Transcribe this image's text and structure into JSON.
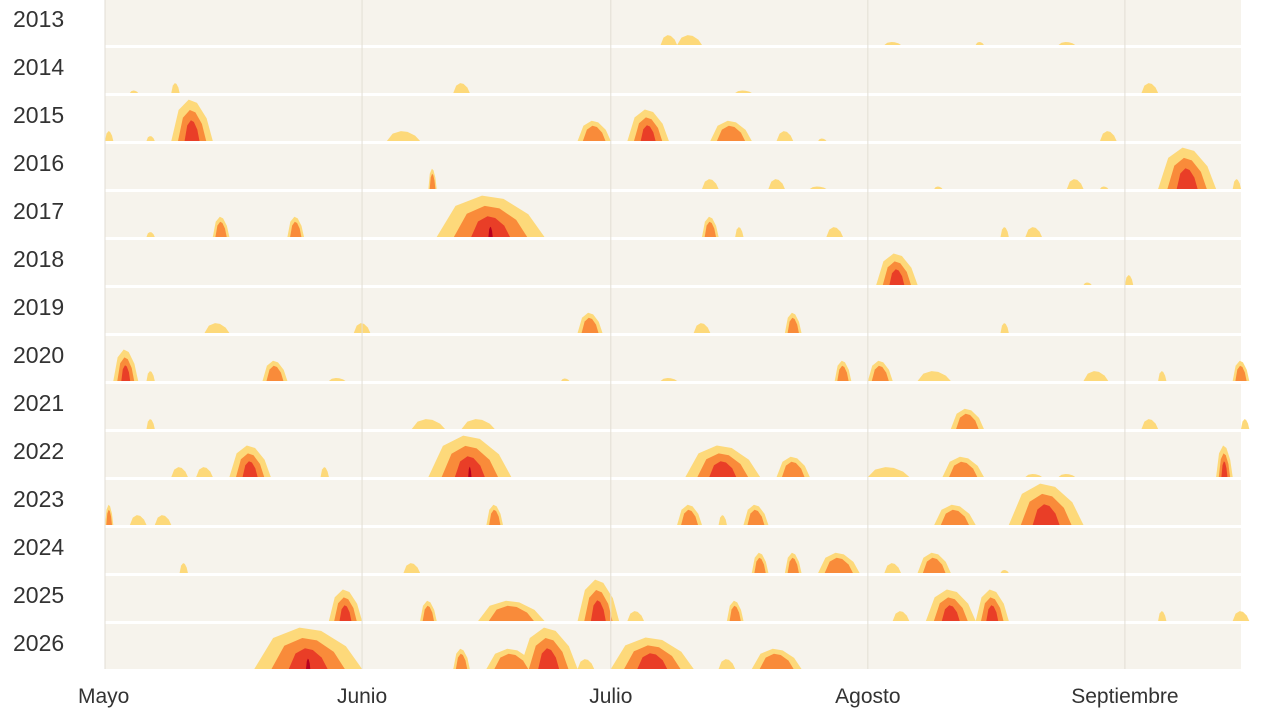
{
  "chart_data": {
    "type": "area",
    "x_axis": {
      "labels": [
        {
          "label": "Mayo",
          "day": 1
        },
        {
          "label": "Junio",
          "day": 32
        },
        {
          "label": "Julio",
          "day": 62
        },
        {
          "label": "Agosto",
          "day": 93
        },
        {
          "label": "Septiembre",
          "day": 124
        }
      ],
      "start_day": 1,
      "end_day": 138
    },
    "levels": [
      {
        "level": 1,
        "color": "#fdd97a"
      },
      {
        "level": 2,
        "color": "#f98b3a"
      },
      {
        "level": 3,
        "color": "#e93e27"
      },
      {
        "level": 4,
        "color": "#b8001f"
      }
    ],
    "rows": [
      {
        "year": "2013",
        "episodes": [
          [
            68,
            70,
            1
          ],
          [
            70,
            73,
            1
          ],
          [
            95,
            97,
            0.3
          ],
          [
            106,
            107,
            0.3
          ],
          [
            116,
            118,
            0.3
          ]
        ]
      },
      {
        "year": "2014",
        "episodes": [
          [
            4,
            5,
            0.1
          ],
          [
            9,
            10,
            1
          ],
          [
            43,
            45,
            1
          ],
          [
            126,
            128,
            1
          ],
          [
            77,
            79,
            0.2
          ]
        ]
      },
      {
        "year": "2015",
        "episodes": [
          [
            1,
            2,
            1
          ],
          [
            6,
            7,
            0.5
          ],
          [
            9,
            14,
            4
          ],
          [
            35,
            39,
            1
          ],
          [
            58,
            62,
            2
          ],
          [
            64,
            69,
            3
          ],
          [
            74,
            79,
            2
          ],
          [
            82,
            84,
            1
          ],
          [
            87,
            88,
            0.2
          ],
          [
            121,
            123,
            1
          ]
        ]
      },
      {
        "year": "2016",
        "episodes": [
          [
            40,
            41,
            2
          ],
          [
            73,
            75,
            1
          ],
          [
            81,
            83,
            1
          ],
          [
            86,
            88,
            0.2
          ],
          [
            101,
            102,
            0.2
          ],
          [
            117,
            119,
            1
          ],
          [
            121,
            122,
            0.2
          ],
          [
            128,
            135,
            4
          ],
          [
            137,
            138,
            1
          ]
        ]
      },
      {
        "year": "2017",
        "episodes": [
          [
            6,
            7,
            0.5
          ],
          [
            14,
            16,
            2
          ],
          [
            23,
            25,
            2
          ],
          [
            41,
            54,
            4
          ],
          [
            73,
            75,
            2
          ],
          [
            77,
            78,
            1
          ],
          [
            88,
            90,
            1
          ],
          [
            109,
            110,
            1
          ],
          [
            112,
            114,
            1
          ]
        ]
      },
      {
        "year": "2018",
        "episodes": [
          [
            94,
            99,
            3
          ],
          [
            119,
            120,
            0.2
          ],
          [
            124,
            125,
            1
          ]
        ]
      },
      {
        "year": "2019",
        "episodes": [
          [
            13,
            16,
            1
          ],
          [
            31,
            33,
            1
          ],
          [
            58,
            61,
            2
          ],
          [
            72,
            74,
            1
          ],
          [
            83,
            85,
            2
          ],
          [
            109,
            110,
            1
          ]
        ]
      },
      {
        "year": "2020",
        "episodes": [
          [
            2,
            5,
            3
          ],
          [
            6,
            7,
            1
          ],
          [
            20,
            23,
            2
          ],
          [
            28,
            30,
            0.3
          ],
          [
            56,
            57,
            0.2
          ],
          [
            68,
            70,
            0.3
          ],
          [
            89,
            91,
            2
          ],
          [
            93,
            96,
            2
          ],
          [
            99,
            103,
            1
          ],
          [
            119,
            122,
            1
          ],
          [
            128,
            129,
            1
          ],
          [
            137,
            139,
            2
          ]
        ]
      },
      {
        "year": "2021",
        "episodes": [
          [
            6,
            7,
            1
          ],
          [
            38,
            42,
            1
          ],
          [
            44,
            48,
            1
          ],
          [
            103,
            107,
            2
          ],
          [
            126,
            128,
            1
          ],
          [
            138,
            139,
            1
          ]
        ]
      },
      {
        "year": "2022",
        "episodes": [
          [
            9,
            11,
            1
          ],
          [
            12,
            14,
            1
          ],
          [
            16,
            21,
            3
          ],
          [
            27,
            28,
            1
          ],
          [
            40,
            50,
            4
          ],
          [
            71,
            80,
            3
          ],
          [
            82,
            86,
            2
          ],
          [
            93,
            98,
            1
          ],
          [
            102,
            107,
            2
          ],
          [
            112,
            114,
            0.3
          ],
          [
            116,
            118,
            0.3
          ],
          [
            135,
            137,
            3
          ]
        ]
      },
      {
        "year": "2023",
        "episodes": [
          [
            1,
            2,
            2
          ],
          [
            4,
            6,
            1
          ],
          [
            7,
            9,
            1
          ],
          [
            47,
            49,
            2
          ],
          [
            70,
            73,
            2
          ],
          [
            75,
            76,
            1
          ],
          [
            78,
            81,
            2
          ],
          [
            101,
            106,
            2
          ],
          [
            110,
            119,
            4
          ]
        ]
      },
      {
        "year": "2024",
        "episodes": [
          [
            10,
            11,
            1
          ],
          [
            37,
            39,
            1
          ],
          [
            79,
            81,
            2
          ],
          [
            83,
            85,
            2
          ],
          [
            87,
            92,
            2
          ],
          [
            95,
            97,
            1
          ],
          [
            99,
            103,
            2
          ],
          [
            109,
            110,
            0.3
          ]
        ]
      },
      {
        "year": "2025",
        "episodes": [
          [
            28,
            32,
            3
          ],
          [
            39,
            41,
            2
          ],
          [
            46,
            54,
            2
          ],
          [
            58,
            63,
            4
          ],
          [
            64,
            66,
            1
          ],
          [
            76,
            78,
            2
          ],
          [
            96,
            98,
            1
          ],
          [
            100,
            106,
            3
          ],
          [
            106,
            110,
            3
          ],
          [
            128,
            129,
            1
          ],
          [
            137,
            139,
            1
          ]
        ]
      },
      {
        "year": "2026",
        "episodes": [
          [
            19,
            32,
            4
          ],
          [
            43,
            45,
            2
          ],
          [
            47,
            53,
            2
          ],
          [
            51,
            58,
            4
          ],
          [
            58,
            60,
            1
          ],
          [
            62,
            72,
            3
          ],
          [
            75,
            77,
            1
          ],
          [
            79,
            85,
            2
          ]
        ]
      }
    ]
  }
}
